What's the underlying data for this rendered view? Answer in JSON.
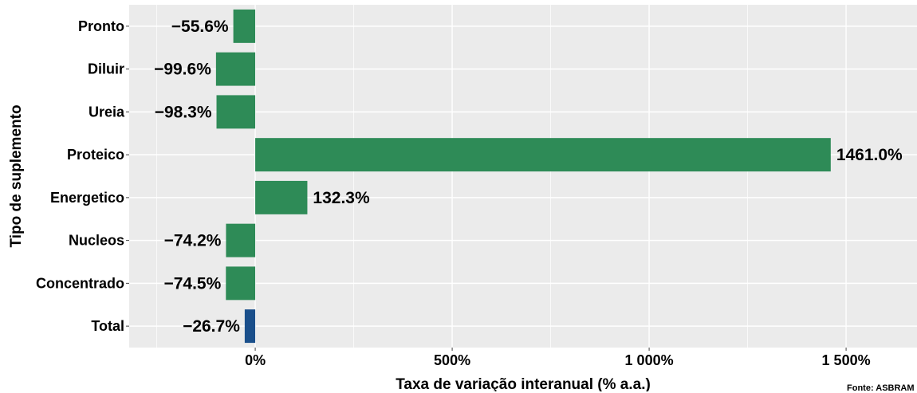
{
  "chart_data": {
    "type": "bar",
    "orientation": "horizontal",
    "categories": [
      "Pronto",
      "Diluir",
      "Ureia",
      "Proteico",
      "Energetico",
      "Nucleos",
      "Concentrado",
      "Total"
    ],
    "values": [
      -55.6,
      -99.6,
      -98.3,
      1461.0,
      132.3,
      -74.2,
      -74.5,
      -26.7
    ],
    "data_labels": [
      "−55.6%",
      "−99.6%",
      "−98.3%",
      "1461.0%",
      "132.3%",
      "−74.2%",
      "−74.5%",
      "−26.7%"
    ],
    "bar_colors": [
      "#2e8b57",
      "#2e8b57",
      "#2e8b57",
      "#2e8b57",
      "#2e8b57",
      "#2e8b57",
      "#2e8b57",
      "#1a4f8b"
    ],
    "xlabel": "Taxa de variação interanual (% a.a.)",
    "ylabel": "Tipo de suplemento",
    "xlim": [
      -320,
      1680
    ],
    "xticks": [
      0,
      500,
      1000,
      1500
    ],
    "xtick_labels": [
      "0%",
      "500%",
      "1 000%",
      "1 500%"
    ],
    "grid": true,
    "panel_background": "#ebebeb",
    "grid_color": "#ffffff"
  },
  "caption": "Fonte: ASBRAM"
}
